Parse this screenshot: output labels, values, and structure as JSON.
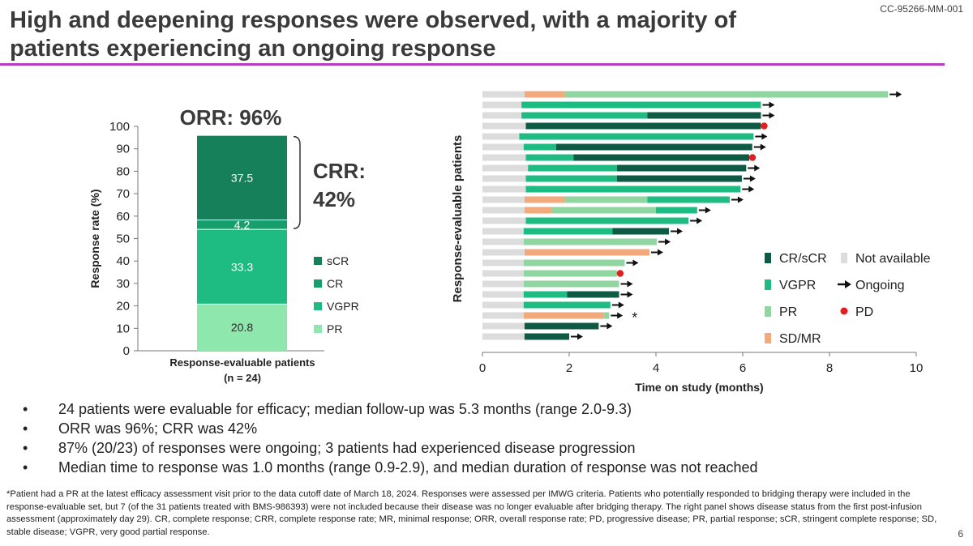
{
  "header": {
    "doc_id": "CC-95266-MM-001",
    "title": "High and deepening responses were observed, with a majority of patients experiencing an ongoing response"
  },
  "chart_data": [
    {
      "type": "bar",
      "stacked": true,
      "title": "ORR: 96%",
      "annotation": "CRR: 42%",
      "annotation_lines": [
        "CRR:",
        "42%"
      ],
      "ylabel": "Response rate (%)",
      "ylim": [
        0,
        100
      ],
      "yticks": [
        0,
        10,
        20,
        30,
        40,
        50,
        60,
        70,
        80,
        90,
        100
      ],
      "categories": [
        "Response-evaluable patients (n = 24)"
      ],
      "category_lines": [
        "Response-evaluable patients",
        "(n = 24)"
      ],
      "series": [
        {
          "name": "PR",
          "values": [
            20.8
          ],
          "label": "20.8",
          "color": "#8ee8ad"
        },
        {
          "name": "VGPR",
          "values": [
            33.3
          ],
          "label": "33.3",
          "color": "#1ebc82"
        },
        {
          "name": "CR",
          "values": [
            4.2
          ],
          "label": "4.2",
          "color": "#169e6c"
        },
        {
          "name": "sCR",
          "values": [
            37.5
          ],
          "label": "37.5",
          "color": "#15805a"
        }
      ],
      "legend": {
        "placement": "right",
        "order": [
          "sCR",
          "CR",
          "VGPR",
          "PR"
        ]
      }
    },
    {
      "type": "swimmer",
      "ylabel": "Response-evaluable patients",
      "xlabel": "Time on study (months)",
      "xlim": [
        0,
        10
      ],
      "xticks": [
        0,
        2,
        4,
        6,
        8,
        10
      ],
      "colors": {
        "Not available": "#dcdcdc",
        "SD/MR": "#f2aa7c",
        "PR": "#8fd6a0",
        "VGPR": "#1ebc82",
        "CR/sCR": "#0e5a45",
        "PD": "#e02020",
        "Ongoing": "#111111"
      },
      "legend": {
        "placement": "bottom-right",
        "items": [
          {
            "name": "CR/sCR",
            "kind": "bar"
          },
          {
            "name": "Not available",
            "kind": "bar"
          },
          {
            "name": "VGPR",
            "kind": "bar"
          },
          {
            "name": "Ongoing",
            "kind": "arrow"
          },
          {
            "name": "PR",
            "kind": "bar"
          },
          {
            "name": "PD",
            "kind": "dot"
          },
          {
            "name": "SD/MR",
            "kind": "bar"
          }
        ]
      },
      "patients": [
        {
          "segments": [
            [
              "Not available",
              0,
              0.97
            ],
            [
              "SD/MR",
              0.97,
              1.9
            ],
            [
              "PR",
              1.9,
              9.35
            ]
          ],
          "end": "ongoing"
        },
        {
          "segments": [
            [
              "Not available",
              0,
              0.9
            ],
            [
              "VGPR",
              0.9,
              6.42
            ]
          ],
          "end": "ongoing"
        },
        {
          "segments": [
            [
              "Not available",
              0,
              0.9
            ],
            [
              "VGPR",
              0.9,
              3.8
            ],
            [
              "CR/sCR",
              3.8,
              6.42
            ]
          ],
          "end": "ongoing"
        },
        {
          "segments": [
            [
              "Not available",
              0,
              1.0
            ],
            [
              "CR/sCR",
              1.0,
              6.42
            ]
          ],
          "end": "pd"
        },
        {
          "segments": [
            [
              "Not available",
              0,
              0.85
            ],
            [
              "VGPR",
              0.85,
              6.25
            ]
          ],
          "end": "ongoing"
        },
        {
          "segments": [
            [
              "Not available",
              0,
              0.95
            ],
            [
              "VGPR",
              0.95,
              1.7
            ],
            [
              "CR/sCR",
              1.7,
              6.22
            ]
          ],
          "end": "ongoing"
        },
        {
          "segments": [
            [
              "Not available",
              0,
              1.0
            ],
            [
              "VGPR",
              1.0,
              2.1
            ],
            [
              "CR/sCR",
              2.1,
              6.15
            ]
          ],
          "end": "pd"
        },
        {
          "segments": [
            [
              "Not available",
              0,
              1.05
            ],
            [
              "VGPR",
              1.05,
              3.1
            ],
            [
              "CR/sCR",
              3.1,
              6.08
            ]
          ],
          "end": "ongoing"
        },
        {
          "segments": [
            [
              "Not available",
              0,
              1.0
            ],
            [
              "VGPR",
              1.0,
              3.1
            ],
            [
              "CR/sCR",
              3.1,
              5.98
            ]
          ],
          "end": "ongoing"
        },
        {
          "segments": [
            [
              "Not available",
              0,
              1.0
            ],
            [
              "VGPR",
              1.0,
              5.95
            ]
          ],
          "end": "ongoing"
        },
        {
          "segments": [
            [
              "Not available",
              0,
              0.97
            ],
            [
              "SD/MR",
              0.97,
              1.9
            ],
            [
              "PR",
              1.9,
              3.8
            ],
            [
              "VGPR",
              3.8,
              5.7
            ]
          ],
          "end": "ongoing"
        },
        {
          "segments": [
            [
              "Not available",
              0,
              0.97
            ],
            [
              "SD/MR",
              0.97,
              1.6
            ],
            [
              "PR",
              1.6,
              4.0
            ],
            [
              "VGPR",
              4.0,
              4.95
            ]
          ],
          "end": "ongoing"
        },
        {
          "segments": [
            [
              "Not available",
              0,
              1.0
            ],
            [
              "VGPR",
              1.0,
              4.75
            ]
          ],
          "end": "ongoing"
        },
        {
          "segments": [
            [
              "Not available",
              0,
              0.95
            ],
            [
              "VGPR",
              0.95,
              3.0
            ],
            [
              "CR/sCR",
              3.0,
              4.3
            ]
          ],
          "end": "ongoing"
        },
        {
          "segments": [
            [
              "Not available",
              0,
              0.95
            ],
            [
              "PR",
              0.95,
              4.02
            ]
          ],
          "end": "ongoing"
        },
        {
          "segments": [
            [
              "Not available",
              0,
              0.97
            ],
            [
              "SD/MR",
              0.97,
              3.85
            ]
          ],
          "end": "ongoing"
        },
        {
          "segments": [
            [
              "Not available",
              0,
              0.95
            ],
            [
              "PR",
              0.95,
              3.28
            ]
          ],
          "end": "ongoing"
        },
        {
          "segments": [
            [
              "Not available",
              0,
              0.95
            ],
            [
              "PR",
              0.95,
              3.1
            ]
          ],
          "end": "pd"
        },
        {
          "segments": [
            [
              "Not available",
              0,
              0.95
            ],
            [
              "PR",
              0.95,
              3.15
            ]
          ],
          "end": "ongoing"
        },
        {
          "segments": [
            [
              "Not available",
              0,
              0.95
            ],
            [
              "VGPR",
              0.95,
              1.95
            ],
            [
              "CR/sCR",
              1.95,
              3.15
            ]
          ],
          "end": "ongoing"
        },
        {
          "segments": [
            [
              "Not available",
              0,
              0.95
            ],
            [
              "VGPR",
              0.95,
              2.95
            ]
          ],
          "end": "ongoing"
        },
        {
          "segments": [
            [
              "Not available",
              0,
              0.95
            ],
            [
              "SD/MR",
              0.95,
              2.8
            ],
            [
              "PR",
              2.8,
              2.92
            ]
          ],
          "end": "ongoing",
          "note": "*"
        },
        {
          "segments": [
            [
              "Not available",
              0,
              0.97
            ],
            [
              "CR/sCR",
              0.97,
              2.68
            ]
          ],
          "end": "ongoing"
        },
        {
          "segments": [
            [
              "Not available",
              0,
              0.97
            ],
            [
              "CR/sCR",
              0.97,
              2.0
            ]
          ],
          "end": "ongoing"
        }
      ]
    }
  ],
  "bullets": [
    "24 patients were evaluable for efficacy; median follow-up was 5.3 months (range 2.0-9.3)",
    "ORR was 96%; CRR was 42%",
    "87% (20/23) of responses were ongoing; 3 patients had experienced disease progression",
    "Median time to response was 1.0 months (range 0.9-2.9), and median duration of response was not reached"
  ],
  "footnote": "*Patient had a PR at the latest efficacy assessment visit prior to the data cutoff date of March 18, 2024. Responses were assessed per IMWG criteria. Patients who potentially responded to bridging therapy were included in the response-evaluable set, but 7 (of the 31 patients treated with BMS-986393) were not included because their disease was no longer evaluable after bridging therapy. The right panel shows disease status from the first post-infusion assessment (approximately day 29). CR, complete response; CRR, complete response rate; MR, minimal response; ORR, overall response rate; PD, progressive disease; PR, partial response; sCR, stringent complete response; SD, stable disease; VGPR, very good partial response.",
  "page_number": "6"
}
